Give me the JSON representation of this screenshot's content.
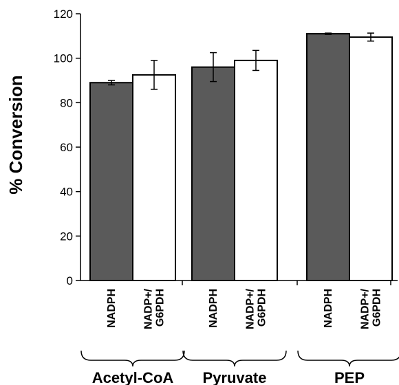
{
  "chart_data": {
    "type": "bar",
    "ylabel": "% Conversion",
    "xlabel": "",
    "ylim": [
      0,
      120
    ],
    "yticks": [
      0,
      20,
      40,
      60,
      80,
      100,
      120
    ],
    "groups": [
      "Acetyl-CoA",
      "Pyruvate",
      "PEP"
    ],
    "series": [
      {
        "label_lines": [
          "NADPH"
        ],
        "color": "#5a5a5a",
        "values": [
          89,
          96,
          111
        ],
        "errors": [
          1,
          6.5,
          0.3
        ]
      },
      {
        "label_lines": [
          "NADP+/",
          "G6PDH"
        ],
        "color": "#ffffff",
        "values": [
          92.5,
          99,
          109.5
        ],
        "errors": [
          6.5,
          4.5,
          1.8
        ]
      }
    ],
    "grid": false,
    "legend": "none"
  }
}
